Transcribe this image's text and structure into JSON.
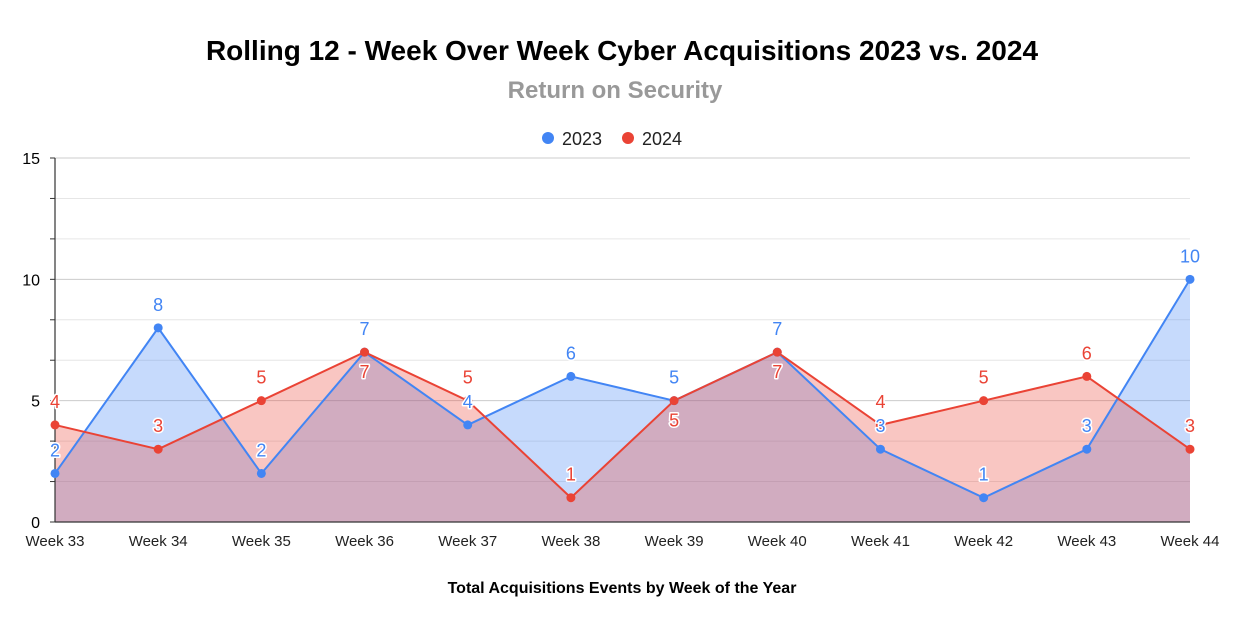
{
  "chart_data": {
    "type": "area",
    "title": "Rolling 12 - Week Over Week Cyber Acquisitions 2023 vs. 2024",
    "subtitle": "Return on Security",
    "xlabel": "Total Acquisitions Events by Week of the Year",
    "ylabel": "",
    "categories": [
      "Week 33",
      "Week 34",
      "Week 35",
      "Week 36",
      "Week 37",
      "Week 38",
      "Week 39",
      "Week 40",
      "Week 41",
      "Week 42",
      "Week 43",
      "Week 44"
    ],
    "series": [
      {
        "name": "2023",
        "color": "#4285f4",
        "values": [
          2,
          8,
          2,
          7,
          4,
          6,
          5,
          7,
          3,
          1,
          3,
          10
        ]
      },
      {
        "name": "2024",
        "color": "#ea4335",
        "values": [
          4,
          3,
          5,
          7,
          5,
          1,
          5,
          7,
          4,
          5,
          6,
          3
        ]
      }
    ],
    "ylim": [
      0,
      15
    ],
    "yticks": [
      "0",
      "5",
      "10",
      "15"
    ],
    "grid": true,
    "legend": "top-center",
    "data_labels": true
  }
}
